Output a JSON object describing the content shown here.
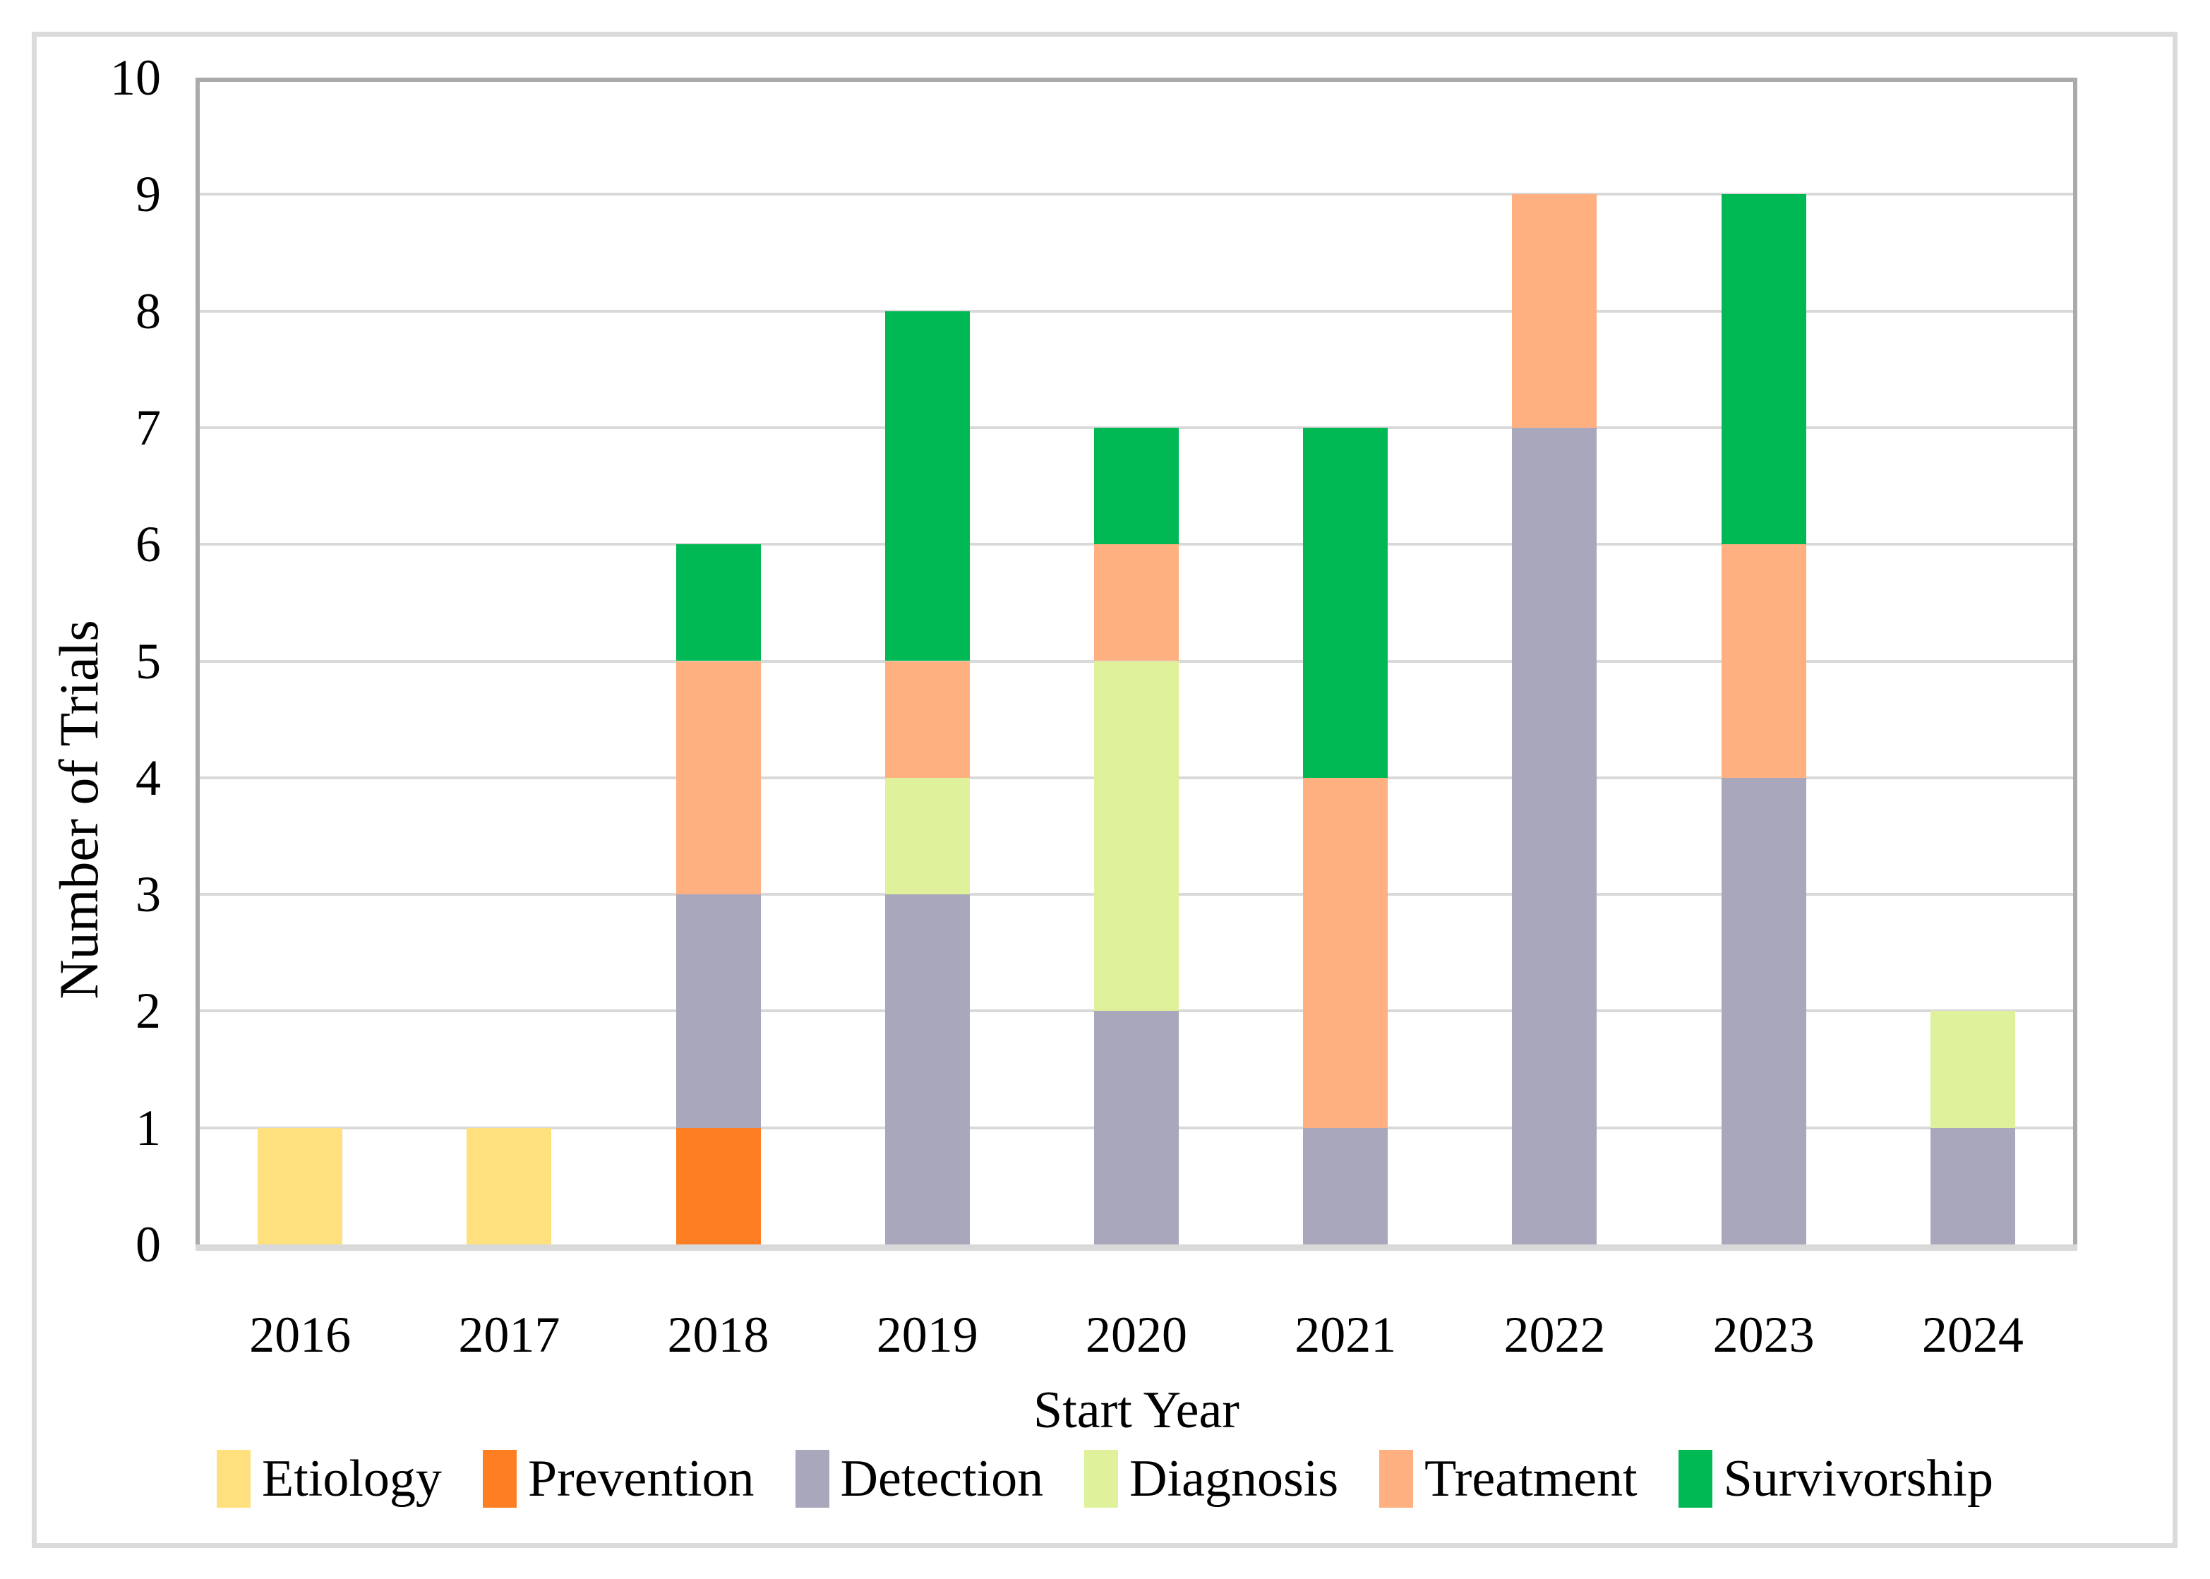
{
  "figure": {
    "background": "#FFFFFF",
    "outer_border_color": "#DBDBDB",
    "plot_border_color": "#ABA9A9",
    "gridline_color": "#D9D9D9",
    "axis_line_color": "#D9D9D9",
    "text_color": "#000000"
  },
  "chart_data": {
    "type": "bar",
    "stacked": true,
    "title": "",
    "xlabel": "Start Year",
    "ylabel": "Number of Trials",
    "categories": [
      "2016",
      "2017",
      "2018",
      "2019",
      "2020",
      "2021",
      "2022",
      "2023",
      "2024"
    ],
    "series": [
      {
        "name": "Etiology",
        "color": "#FFE07E",
        "values": [
          1,
          1,
          0,
          0,
          0,
          0,
          0,
          0,
          0
        ]
      },
      {
        "name": "Prevention",
        "color": "#FD7E23",
        "values": [
          0,
          0,
          1,
          0,
          0,
          0,
          0,
          0,
          0
        ]
      },
      {
        "name": "Detection",
        "color": "#A9A7BB",
        "values": [
          0,
          0,
          2,
          3,
          2,
          1,
          7,
          4,
          1
        ]
      },
      {
        "name": "Diagnosis",
        "color": "#DFF29B",
        "values": [
          0,
          0,
          0,
          1,
          3,
          0,
          0,
          0,
          1
        ]
      },
      {
        "name": "Treatment",
        "color": "#FFB081",
        "values": [
          0,
          0,
          2,
          1,
          1,
          3,
          2,
          2,
          0
        ]
      },
      {
        "name": "Survivorship",
        "color": "#00B955",
        "values": [
          0,
          0,
          1,
          3,
          1,
          3,
          0,
          3,
          0
        ]
      }
    ],
    "totals_by_year": [
      1,
      1,
      6,
      8,
      7,
      7,
      9,
      9,
      2
    ],
    "ylim": [
      0,
      10
    ],
    "yticks": [
      0,
      1,
      2,
      3,
      4,
      5,
      6,
      7,
      8,
      9,
      10
    ],
    "grid": true,
    "legend_position": "bottom"
  }
}
